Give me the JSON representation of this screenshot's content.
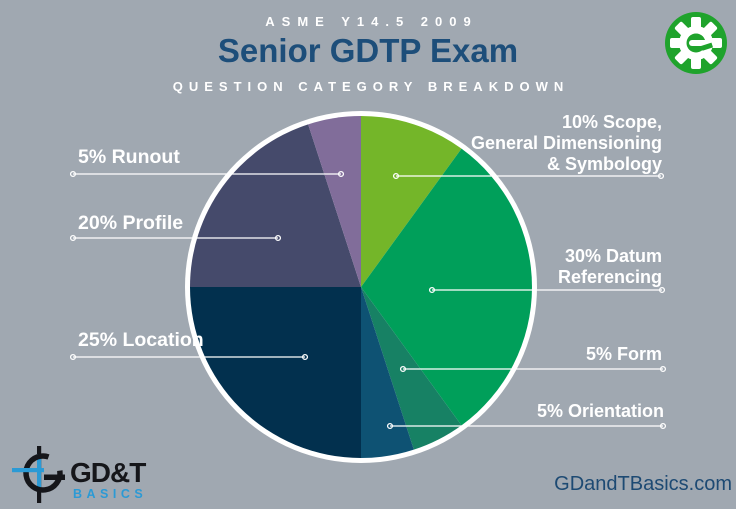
{
  "header": {
    "kicker": "ASME Y14.5 2009",
    "title": "Senior GDTP Exam",
    "subtitle": "QUESTION CATEGORY BREAKDOWN"
  },
  "chart_data": {
    "type": "pie",
    "title": "Senior GDTP Exam",
    "subtitle": "Question Category Breakdown",
    "standard": "ASME Y14.5 2009",
    "start_angle_deg": 0,
    "direction": "clockwise",
    "units": "percent",
    "slices": [
      {
        "category": "Scope, General Dimensioning & Symbology",
        "value_pct": 10,
        "color": "#74b629",
        "label": "10% Scope,\nGeneral Dimensioning\n& Symbology",
        "label_side": "right"
      },
      {
        "category": "Datum Referencing",
        "value_pct": 30,
        "color": "#009f5a",
        "label": "30% Datum\nReferencing",
        "label_side": "right"
      },
      {
        "category": "Form",
        "value_pct": 5,
        "color": "#178164",
        "label": "5% Form",
        "label_side": "right"
      },
      {
        "category": "Orientation",
        "value_pct": 5,
        "color": "#0e5273",
        "label": "5% Orientation",
        "label_side": "right"
      },
      {
        "category": "Location",
        "value_pct": 25,
        "color": "#02304e",
        "label": "25% Location",
        "label_side": "left"
      },
      {
        "category": "Profile",
        "value_pct": 20,
        "color": "#454a6b",
        "label": "20% Profile",
        "label_side": "left"
      },
      {
        "category": "Runout",
        "value_pct": 5,
        "color": "#816d9a",
        "label": "5% Runout",
        "label_side": "left"
      }
    ]
  },
  "footer": {
    "brand_name": "GD&T",
    "brand_sub": "BASICS",
    "website": "GDandTBasics.com"
  },
  "colors": {
    "background": "#a0a8b1",
    "title_text": "#1d4e7a",
    "label_text": "#ffffff",
    "pie_ring": "#ffffff",
    "gear_green": "#1fa32c",
    "brand_black": "#15161a",
    "brand_blue": "#2b9ad5",
    "website_text": "#1d4a73"
  }
}
